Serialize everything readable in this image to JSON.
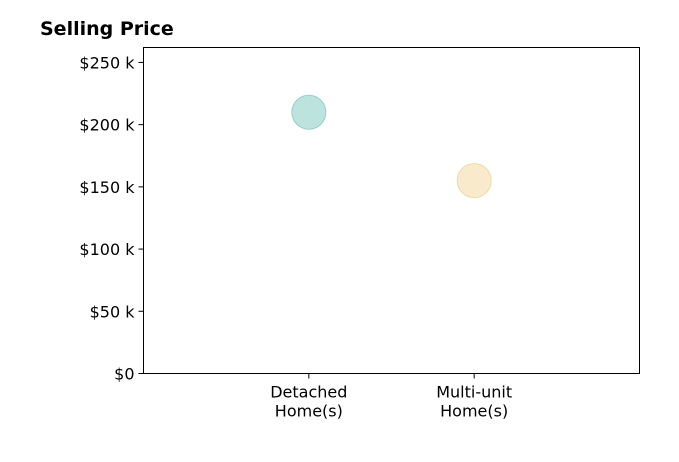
{
  "chart_data": {
    "type": "scatter",
    "title": "Selling Price",
    "xlabel": "",
    "ylabel": "",
    "categories": [
      [
        "Detached",
        "Home(s)"
      ],
      [
        "Multi-unit",
        "Home(s)"
      ]
    ],
    "values": [
      210000,
      155000
    ],
    "point_colors": [
      "#b2ded9",
      "#f8e6c2"
    ],
    "point_stroke_colors": [
      "#96cec7",
      "#f0d9a8"
    ],
    "ylim": [
      0,
      262000
    ],
    "yticks": [
      0,
      50000,
      100000,
      150000,
      200000,
      250000
    ],
    "ytick_labels": [
      "$0",
      "$50 k",
      "$100 k",
      "$150 k",
      "$200 k",
      "$250 k"
    ],
    "grid": false,
    "legend": "none"
  }
}
